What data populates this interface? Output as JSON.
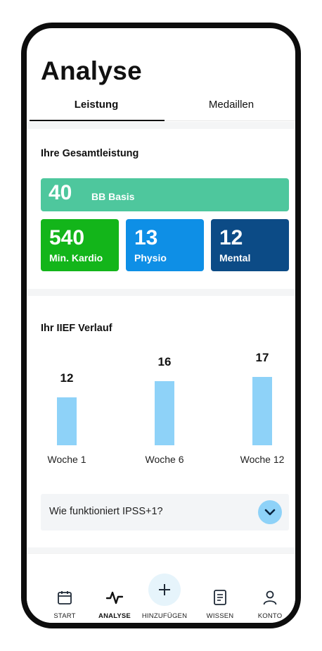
{
  "page": {
    "title": "Analyse"
  },
  "tabs": [
    {
      "label": "Leistung",
      "active": true
    },
    {
      "label": "Medaillen",
      "active": false
    }
  ],
  "performance": {
    "heading": "Ihre Gesamtleistung",
    "bb": {
      "value": "40",
      "label": "BB Basis",
      "color": "#4ec79d"
    },
    "stats": [
      {
        "value": "540",
        "label": "Min. Kardio",
        "color": "#13b51a"
      },
      {
        "value": "13",
        "label": "Physio",
        "color": "#0e8fe6"
      },
      {
        "value": "12",
        "label": "Mental",
        "color": "#0c4b86"
      }
    ]
  },
  "iief": {
    "heading": "Ihr IIEF Verlauf",
    "bar_color": "#8ed2f8"
  },
  "chart_data": {
    "type": "bar",
    "categories": [
      "Woche 1",
      "Woche 6",
      "Woche 12"
    ],
    "values": [
      12,
      16,
      17
    ],
    "data_labels": [
      "12",
      "16",
      "17"
    ],
    "title": "",
    "xlabel": "",
    "ylabel": ""
  },
  "faq": {
    "question": "Wie funktioniert IPSS+1?",
    "icon": "chevron-down-icon"
  },
  "nav": {
    "items": [
      {
        "label": "START",
        "icon": "calendar-icon",
        "active": false
      },
      {
        "label": "ANALYSE",
        "icon": "activity-icon",
        "active": true
      },
      {
        "label": "HINZUFÜGEN",
        "icon": "plus-icon",
        "active": false
      },
      {
        "label": "WISSEN",
        "icon": "document-icon",
        "active": false
      },
      {
        "label": "KONTO",
        "icon": "user-icon",
        "active": false
      }
    ]
  }
}
